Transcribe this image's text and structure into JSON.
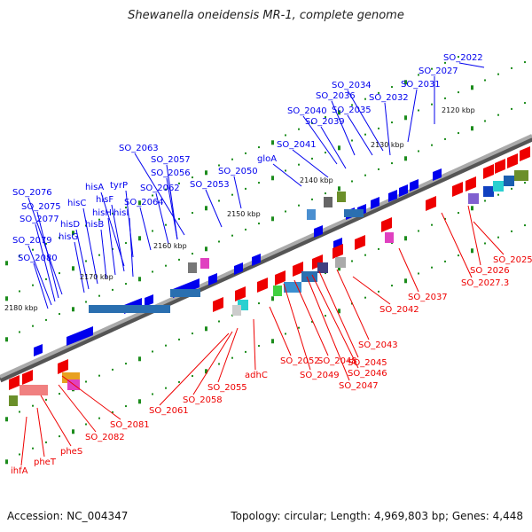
{
  "title": "Shewanella oneidensis MR-1, complete genome",
  "footer": {
    "accession": "Accession: NC_004347",
    "summary": "Topology: circular; Length: 4,969,803 bp; Genes: 4,448"
  },
  "colors": {
    "forward": "#0000ee",
    "reverse": "#ee0000",
    "dots": "#1c8c1c",
    "axis": "#888888"
  },
  "scale_labels": [
    "2120 kbp",
    "2130 kbp",
    "2140 kbp",
    "2150 kbp",
    "2160 kbp",
    "2170 kbp",
    "2180 kbp"
  ],
  "forward_labels": [
    "SO_2022",
    "SO_2027",
    "SO_2031",
    "SO_2034",
    "SO_2032",
    "SO_2036",
    "SO_2035",
    "SO_2040",
    "SO_2039",
    "SO_2041",
    "gloA",
    "SO_2050",
    "SO_2053",
    "SO_2063",
    "SO_2057",
    "SO_2056",
    "SO_2062",
    "SO_2064",
    "tyrP",
    "hisA",
    "hisF",
    "hisH",
    "hisI",
    "hisB",
    "hisC",
    "hisD",
    "hisG",
    "SO_2076",
    "SO_2075",
    "SO_2077",
    "SO_2079",
    "SO_2080"
  ],
  "reverse_labels": [
    "SO_2025",
    "SO_2026",
    "SO_2027.3",
    "SO_2037",
    "SO_2042",
    "SO_2043",
    "SO_2045",
    "SO_2046",
    "SO_2047",
    "SO_2048",
    "SO_2049",
    "SO_2052",
    "adhC",
    "SO_2055",
    "SO_2058",
    "SO_2061",
    "SO_2081",
    "SO_2082",
    "pheS",
    "pheT",
    "ihfA"
  ]
}
